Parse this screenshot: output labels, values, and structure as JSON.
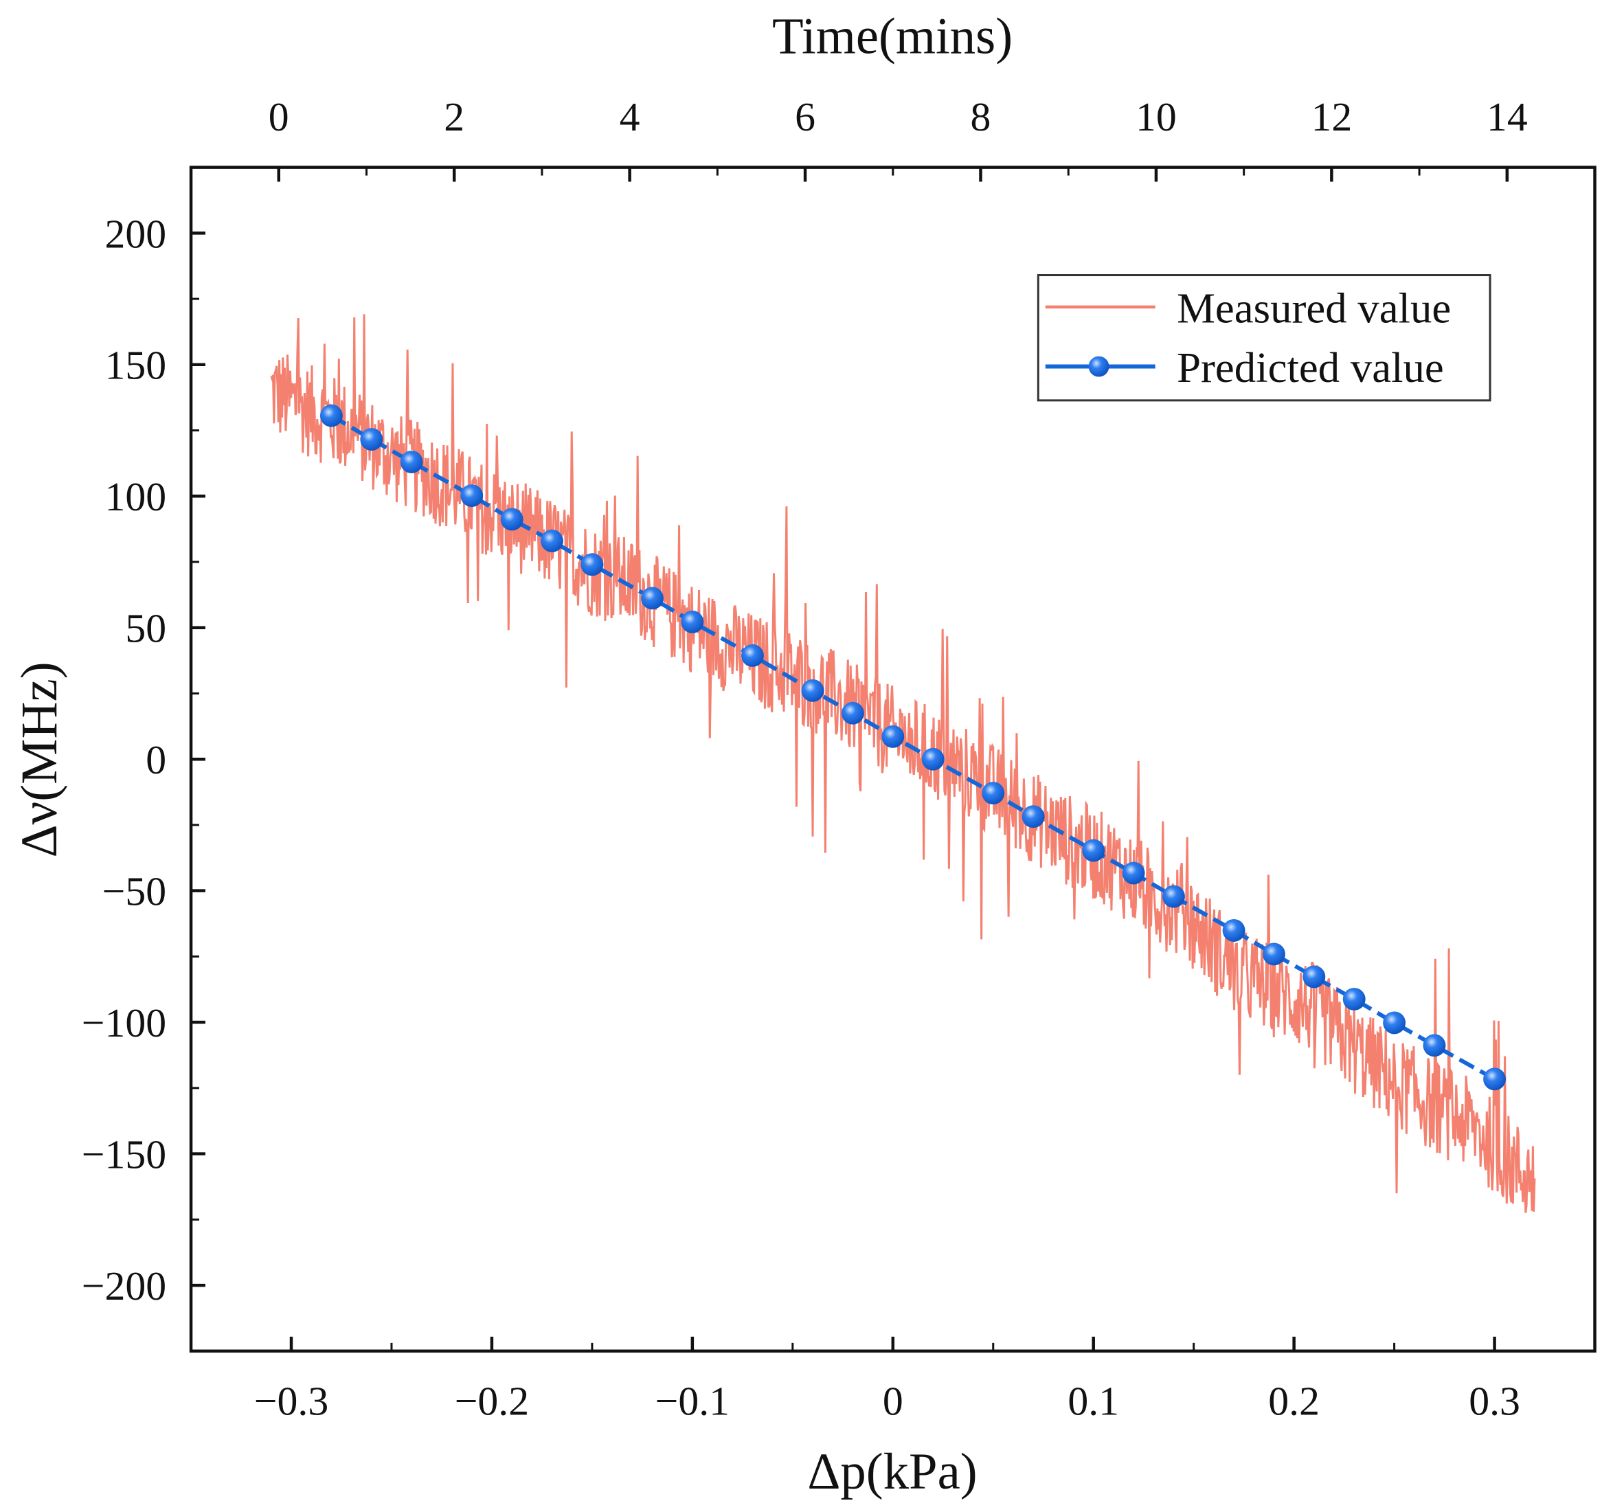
{
  "chart_data": {
    "type": "line",
    "xlabel": "Δp(kPa)",
    "ylabel": "Δν(MHz)",
    "top_xlabel": "Time(mins)",
    "xlim": [
      -0.35,
      0.35
    ],
    "ylim": [
      -225,
      225
    ],
    "top_xlim": [
      -1,
      15
    ],
    "x_ticks": [
      -0.3,
      -0.2,
      -0.1,
      0,
      0.1,
      0.2,
      0.3
    ],
    "x_tick_labels": [
      "−0.3",
      "−0.2",
      "−0.1",
      "0",
      "0.1",
      "0.2",
      "0.3"
    ],
    "top_x_ticks": [
      0,
      2,
      4,
      6,
      8,
      10,
      12,
      14
    ],
    "top_x_tick_labels": [
      "0",
      "2",
      "4",
      "6",
      "8",
      "10",
      "12",
      "14"
    ],
    "y_ticks": [
      200,
      150,
      100,
      50,
      0,
      -50,
      -100,
      -150,
      -200
    ],
    "y_tick_labels": [
      "200",
      "150",
      "100",
      "50",
      "0",
      "−50",
      "−100",
      "−150",
      "−200"
    ],
    "grid": false,
    "legend": {
      "position": "top-right",
      "entries": [
        "Measured value",
        "Predicted value"
      ]
    },
    "colors": {
      "measured": "#F4806F",
      "predicted": "#1467D9"
    },
    "series": [
      {
        "name": "Measured value",
        "noise_amplitude": 18,
        "x": [
          -0.31,
          -0.29,
          -0.27,
          -0.25,
          -0.23,
          -0.21,
          -0.19,
          -0.17,
          -0.15,
          -0.13,
          -0.11,
          -0.09,
          -0.07,
          -0.05,
          -0.03,
          -0.01,
          0.01,
          0.03,
          0.05,
          0.07,
          0.09,
          0.11,
          0.13,
          0.15,
          0.17,
          0.19,
          0.21,
          0.23,
          0.25,
          0.27,
          0.29,
          0.31,
          0.32
        ],
        "y": [
          140,
          132,
          125,
          115,
          108,
          98,
          90,
          82,
          72,
          66,
          55,
          46,
          38,
          32,
          24,
          14,
          6,
          -2,
          -12,
          -22,
          -32,
          -40,
          -52,
          -62,
          -80,
          -88,
          -95,
          -110,
          -122,
          -132,
          -140,
          -155,
          -160
        ]
      },
      {
        "name": "Predicted value",
        "x": [
          -0.28,
          -0.26,
          -0.24,
          -0.21,
          -0.19,
          -0.17,
          -0.15,
          -0.12,
          -0.1,
          -0.07,
          -0.04,
          -0.02,
          0,
          0.02,
          0.05,
          0.07,
          0.1,
          0.12,
          0.14,
          0.17,
          0.19,
          0.21,
          0.23,
          0.25,
          0.27,
          0.3
        ],
        "y": [
          130.6,
          121.6,
          113,
          100.2,
          91.2,
          83,
          74,
          61.2,
          52.2,
          39.4,
          26.1,
          17.5,
          8.6,
          0,
          -12.9,
          -21.8,
          -34.7,
          -43.3,
          -52.2,
          -65.1,
          -74.1,
          -82.7,
          -91.2,
          -100.2,
          -108.8,
          -121.6
        ]
      }
    ]
  }
}
